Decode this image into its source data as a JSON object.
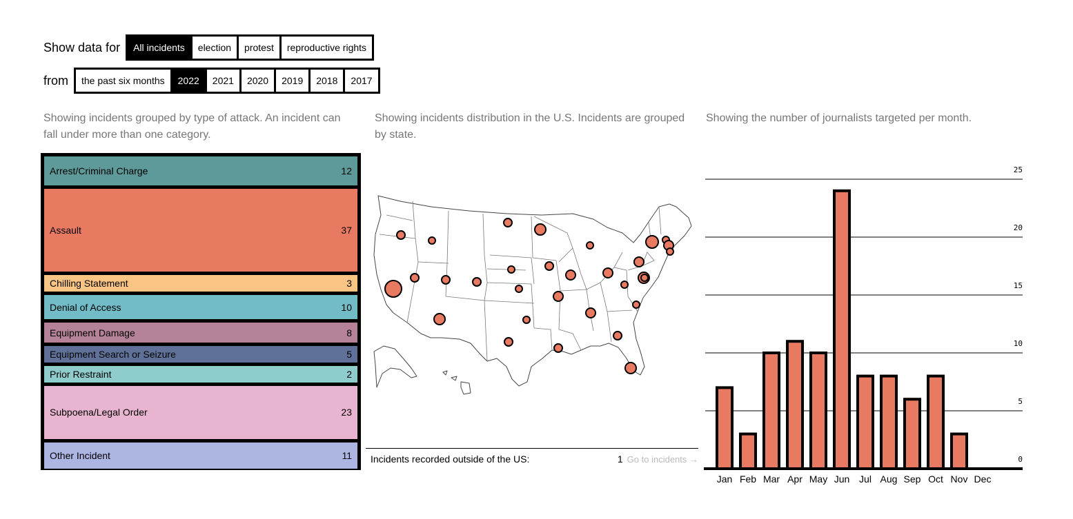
{
  "filters": {
    "show_label": "Show data for",
    "categories": [
      "All incidents",
      "election",
      "protest",
      "reproductive rights"
    ],
    "active_category": 0,
    "from_label": "from",
    "periods": [
      "the past six months",
      "2022",
      "2021",
      "2020",
      "2019",
      "2018",
      "2017"
    ],
    "active_period": 1
  },
  "descriptions": {
    "types": "Showing incidents grouped by type of attack. An incident can fall under more than one category.",
    "map": "Showing incidents distribution in the U.S. Incidents are grouped by state.",
    "chart": "Showing the number of journalists targeted per month."
  },
  "incident_types": [
    {
      "label": "Arrest/Criminal Charge",
      "count": 12,
      "color": "#5e9a9a"
    },
    {
      "label": "Assault",
      "count": 37,
      "color": "#e97a62"
    },
    {
      "label": "Chilling Statement",
      "count": 3,
      "color": "#f8c584"
    },
    {
      "label": "Denial of Access",
      "count": 10,
      "color": "#72bcc7"
    },
    {
      "label": "Equipment Damage",
      "count": 8,
      "color": "#b5829a"
    },
    {
      "label": "Equipment Search or Seizure",
      "count": 5,
      "color": "#5f7199"
    },
    {
      "label": "Prior Restraint",
      "count": 2,
      "color": "#8fcccc"
    },
    {
      "label": "Subpoena/Legal Order",
      "count": 23,
      "color": "#e8b4cf"
    },
    {
      "label": "Other Incident",
      "count": 11,
      "color": "#adb6e3"
    }
  ],
  "map": {
    "outside_label": "Incidents recorded outside of the US:",
    "outside_count": "1",
    "go_link": "Go to incidents →",
    "dot_color": "#e97a62"
  },
  "chart_data": {
    "type": "bar",
    "categories": [
      "Jan",
      "Feb",
      "Mar",
      "Apr",
      "May",
      "Jun",
      "Jul",
      "Aug",
      "Sep",
      "Oct",
      "Nov",
      "Dec"
    ],
    "values": [
      7,
      3,
      10,
      11,
      10,
      24,
      8,
      8,
      6,
      8,
      3,
      0
    ],
    "ylim": [
      0,
      25
    ],
    "yticks": [
      0,
      5,
      10,
      15,
      20,
      25
    ],
    "bar_color": "#e97a62",
    "grid": true
  }
}
